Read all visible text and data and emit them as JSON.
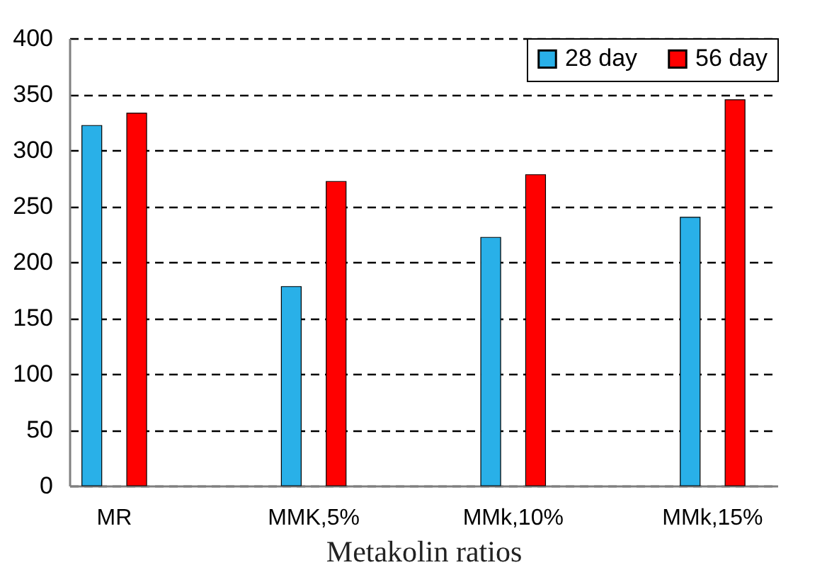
{
  "chart_data": {
    "type": "bar",
    "xlabel": "Metakolin ratios",
    "categories": [
      "MR",
      "MMK,5%",
      "MMk,10%",
      "MMk,15%"
    ],
    "series": [
      {
        "name": "28 day",
        "color": "#29b0e8",
        "values": [
          322,
          178,
          222,
          240
        ]
      },
      {
        "name": "56 day",
        "color": "#ff0000",
        "values": [
          333,
          272,
          278,
          345
        ]
      }
    ],
    "ylim": [
      0,
      400
    ],
    "yticks": [
      0,
      50,
      100,
      150,
      200,
      250,
      300,
      350,
      400
    ],
    "grid": "y",
    "legend": "top right"
  }
}
